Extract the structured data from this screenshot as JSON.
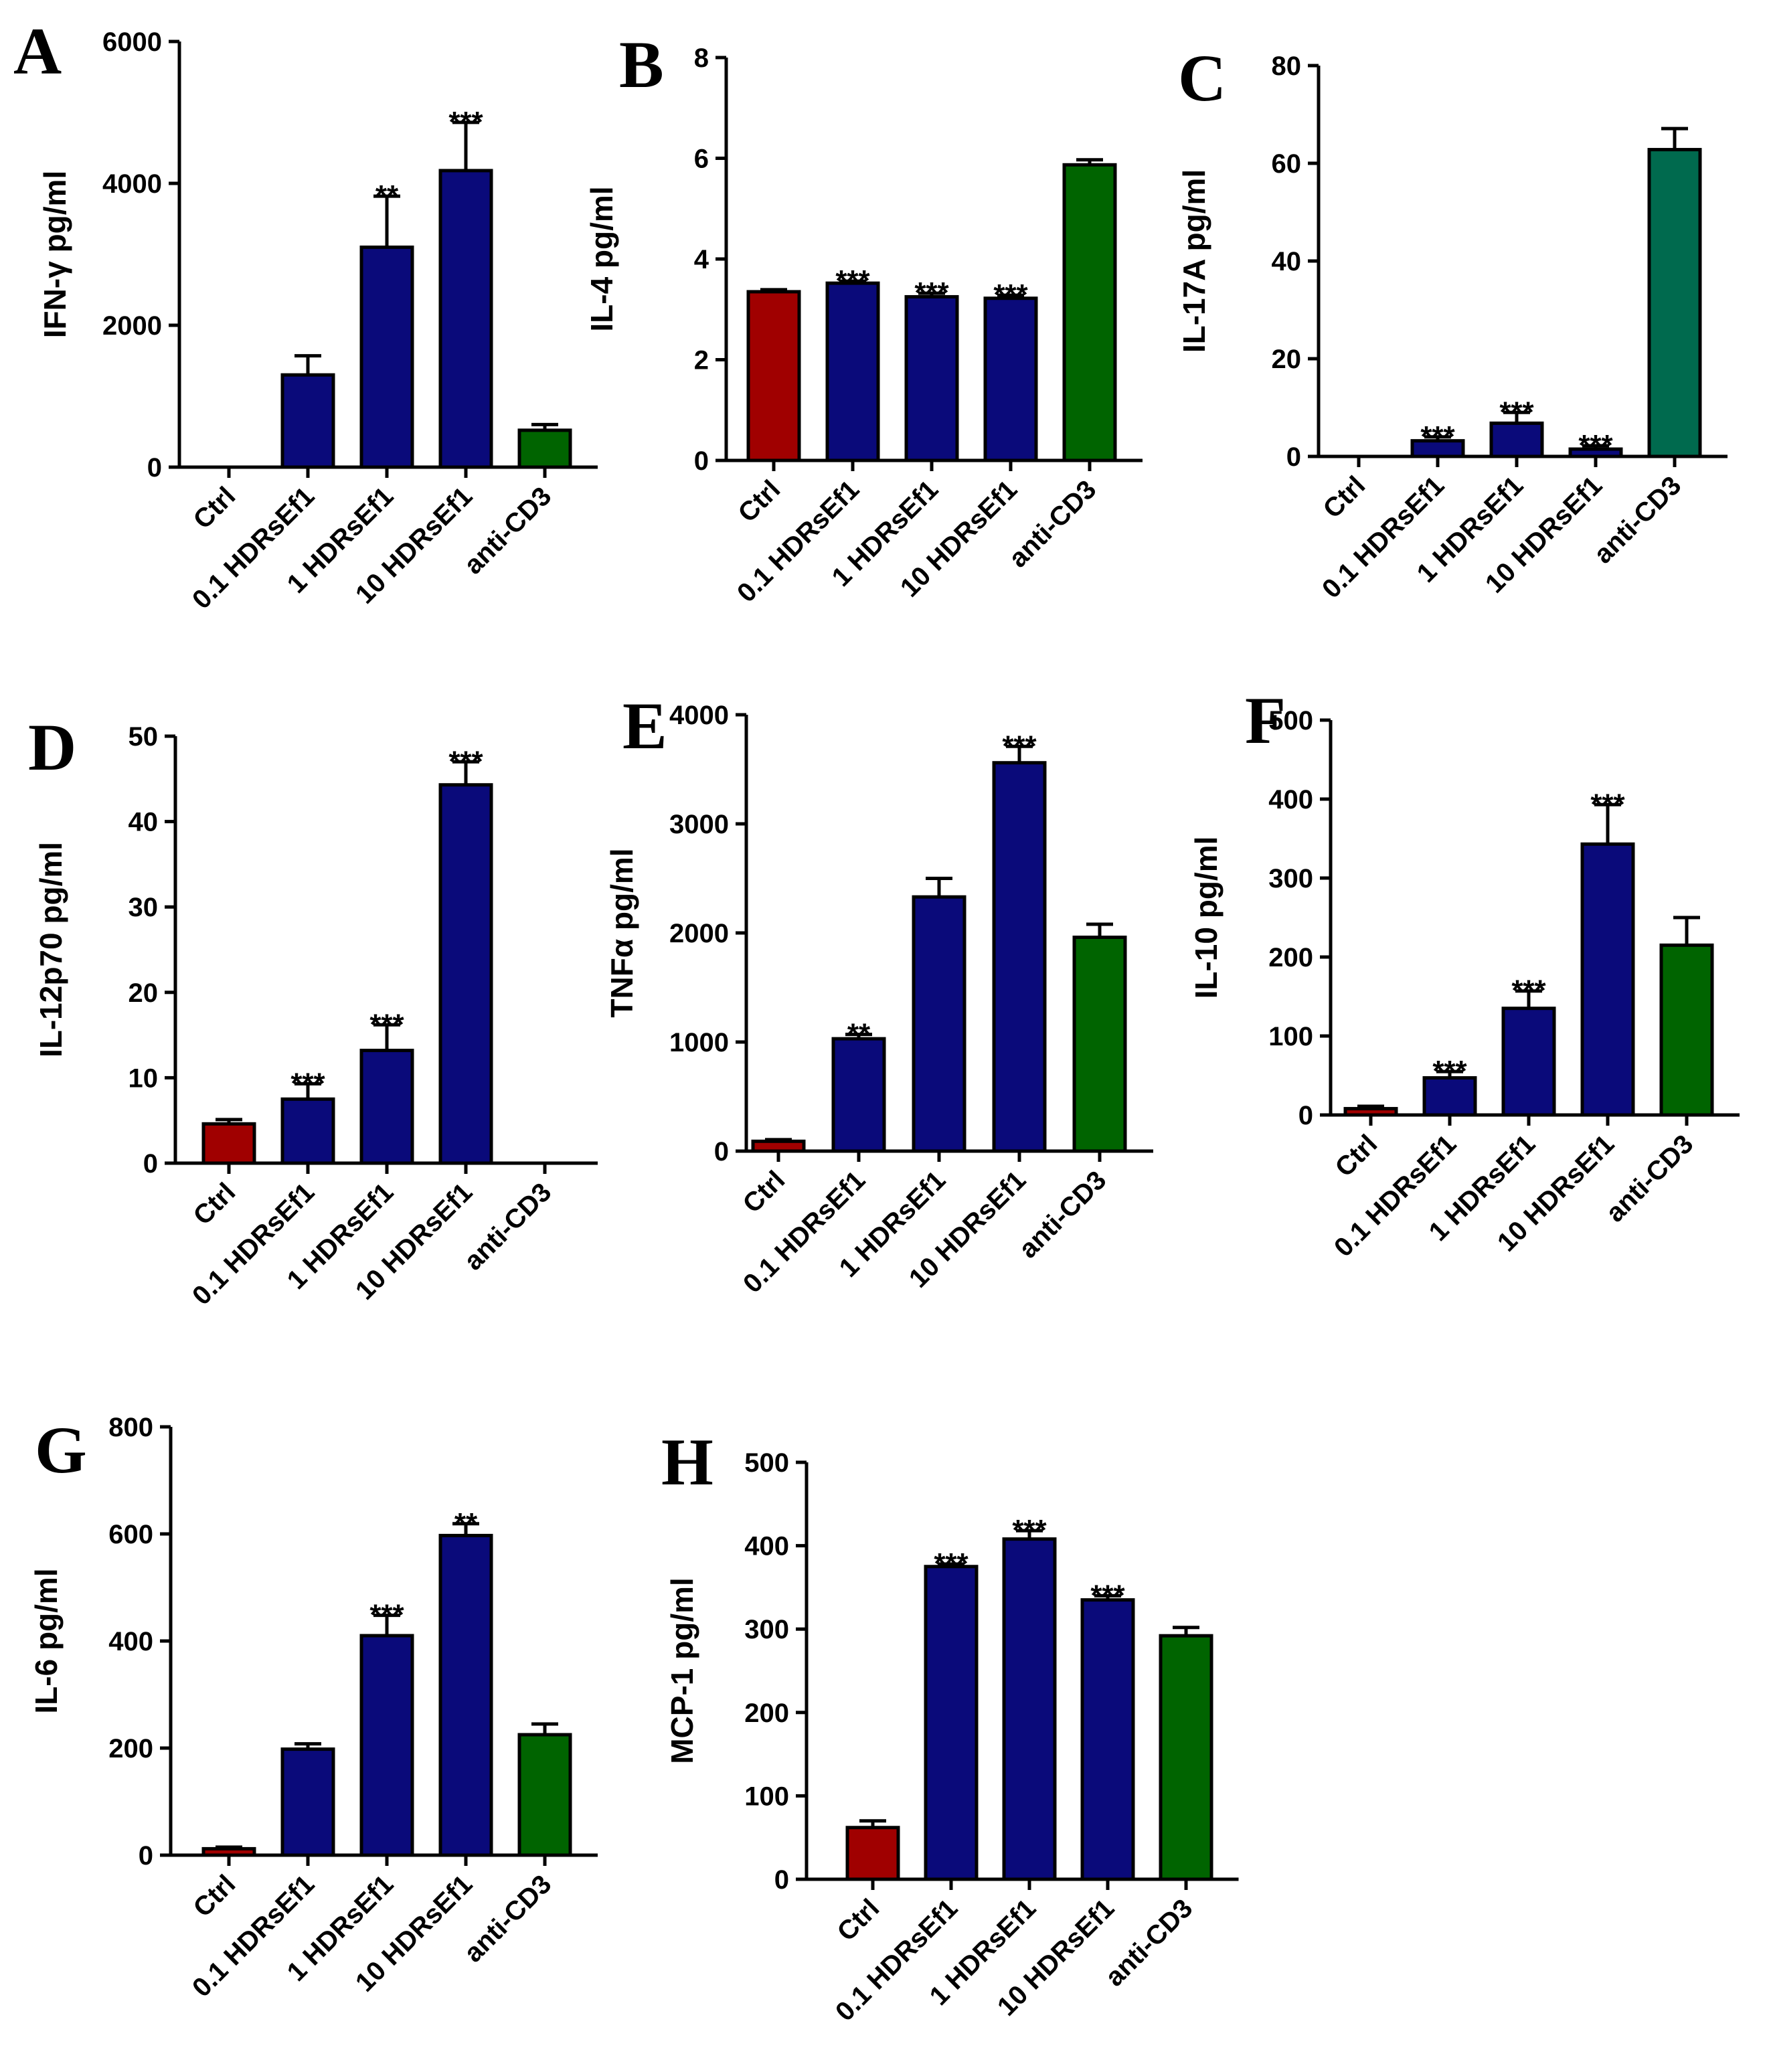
{
  "colors": {
    "ctrl": "#a00000",
    "treatment": "#0a0a7a",
    "anti_cd3": "#006400",
    "anti_cd3_alt": "#006a4e"
  },
  "chart_data": [
    {
      "panel": "A",
      "type": "bar",
      "ylabel": "IFN-γ pg/ml",
      "ylim": [
        0,
        6000
      ],
      "yticks": [
        0,
        2000,
        4000,
        6000
      ],
      "categories": [
        "Ctrl",
        "0.1 HDRsEf1",
        "1 HDRsEf1",
        "10 HDRsEf1",
        "anti-CD3"
      ],
      "values": [
        0,
        1300,
        3100,
        4180,
        520
      ],
      "errors": [
        0,
        270,
        720,
        680,
        80
      ],
      "significance": [
        "",
        "",
        "**",
        "***",
        ""
      ],
      "colors": [
        "ctrl",
        "treatment",
        "treatment",
        "treatment",
        "anti_cd3"
      ]
    },
    {
      "panel": "B",
      "type": "bar",
      "ylabel": "IL-4 pg/ml",
      "ylim": [
        0,
        8
      ],
      "yticks": [
        0,
        2,
        4,
        6,
        8
      ],
      "categories": [
        "Ctrl",
        "0.1 HDRsEf1",
        "1 HDRsEf1",
        "10 HDRsEf1",
        "anti-CD3"
      ],
      "values": [
        3.35,
        3.52,
        3.25,
        3.22,
        5.87
      ],
      "errors": [
        0.04,
        0.04,
        0.07,
        0.06,
        0.1
      ],
      "significance": [
        "",
        "***",
        "***",
        "***",
        ""
      ],
      "colors": [
        "ctrl",
        "treatment",
        "treatment",
        "treatment",
        "anti_cd3"
      ]
    },
    {
      "panel": "C",
      "type": "bar",
      "ylabel": "IL-17A pg/ml",
      "ylim": [
        0,
        80
      ],
      "yticks": [
        0,
        20,
        40,
        60,
        80
      ],
      "categories": [
        "Ctrl",
        "0.1 HDRsEf1",
        "1 HDRsEf1",
        "10 HDRsEf1",
        "anti-CD3"
      ],
      "values": [
        0,
        3.2,
        6.8,
        1.5,
        62.8
      ],
      "errors": [
        0,
        0.8,
        2.2,
        0.7,
        4.3
      ],
      "significance": [
        "",
        "***",
        "***",
        "***",
        ""
      ],
      "colors": [
        "ctrl",
        "treatment",
        "treatment",
        "treatment",
        "anti_cd3_alt"
      ]
    },
    {
      "panel": "D",
      "type": "bar",
      "ylabel": "IL-12p70 pg/ml",
      "ylim": [
        0,
        50
      ],
      "yticks": [
        0,
        10,
        20,
        30,
        40,
        50
      ],
      "categories": [
        "Ctrl",
        "0.1 HDRsEf1",
        "1 HDRsEf1",
        "10 HDRsEf1",
        "anti-CD3"
      ],
      "values": [
        4.6,
        7.5,
        13.2,
        44.3,
        0
      ],
      "errors": [
        0.5,
        1.8,
        3.0,
        2.7,
        0
      ],
      "significance": [
        "",
        "***",
        "***",
        "***",
        ""
      ],
      "colors": [
        "ctrl",
        "treatment",
        "treatment",
        "treatment",
        "anti_cd3"
      ]
    },
    {
      "panel": "E",
      "type": "bar",
      "ylabel": "TNFα pg/ml",
      "ylim": [
        0,
        4000
      ],
      "yticks": [
        0,
        1000,
        2000,
        3000,
        4000
      ],
      "categories": [
        "Ctrl",
        "0.1 HDRsEf1",
        "1 HDRsEf1",
        "10 HDRsEf1",
        "anti-CD3"
      ],
      "values": [
        90,
        1030,
        2330,
        3560,
        1960
      ],
      "errors": [
        15,
        40,
        170,
        150,
        120
      ],
      "significance": [
        "",
        "**",
        "",
        "***",
        ""
      ],
      "colors": [
        "ctrl",
        "treatment",
        "treatment",
        "treatment",
        "anti_cd3"
      ]
    },
    {
      "panel": "F",
      "type": "bar",
      "ylabel": "IL-10 pg/ml",
      "ylim": [
        0,
        500
      ],
      "yticks": [
        0,
        100,
        200,
        300,
        400,
        500
      ],
      "categories": [
        "Ctrl",
        "0.1 HDRsEf1",
        "1 HDRsEf1",
        "10 HDRsEf1",
        "anti-CD3"
      ],
      "values": [
        8,
        47,
        135,
        343,
        215
      ],
      "errors": [
        3,
        8,
        22,
        50,
        35
      ],
      "significance": [
        "",
        "***",
        "***",
        "***",
        ""
      ],
      "colors": [
        "ctrl",
        "treatment",
        "treatment",
        "treatment",
        "anti_cd3"
      ]
    },
    {
      "panel": "G",
      "type": "bar",
      "ylabel": "IL-6 pg/ml",
      "ylim": [
        0,
        800
      ],
      "yticks": [
        0,
        200,
        400,
        600,
        800
      ],
      "categories": [
        "Ctrl",
        "0.1 HDRsEf1",
        "1 HDRsEf1",
        "10 HDRsEf1",
        "anti-CD3"
      ],
      "values": [
        12,
        198,
        410,
        597,
        225
      ],
      "errors": [
        3,
        10,
        38,
        22,
        20
      ],
      "significance": [
        "",
        "",
        "***",
        "**",
        ""
      ],
      "colors": [
        "ctrl",
        "treatment",
        "treatment",
        "treatment",
        "anti_cd3"
      ]
    },
    {
      "panel": "H",
      "type": "bar",
      "ylabel": "MCP-1 pg/ml",
      "ylim": [
        0,
        500
      ],
      "yticks": [
        0,
        100,
        200,
        300,
        400,
        500
      ],
      "categories": [
        "Ctrl",
        "0.1 HDRsEf1",
        "1 HDRsEf1",
        "10 HDRsEf1",
        "anti-CD3"
      ],
      "values": [
        62,
        375,
        408,
        335,
        292
      ],
      "errors": [
        8,
        3,
        10,
        5,
        10
      ],
      "significance": [
        "",
        "***",
        "***",
        "***",
        ""
      ],
      "colors": [
        "ctrl",
        "treatment",
        "treatment",
        "treatment",
        "anti_cd3"
      ]
    }
  ]
}
